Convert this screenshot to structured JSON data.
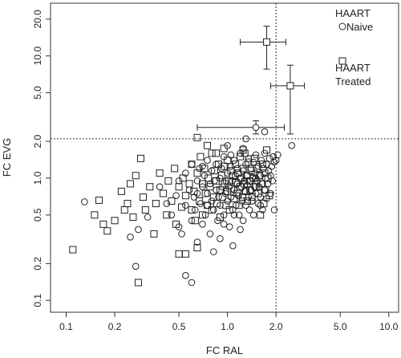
{
  "chart_data": {
    "type": "scatter",
    "title": "",
    "xlabel": "FC RAL",
    "ylabel": "FC EVG",
    "xscale": "log",
    "yscale": "log",
    "xlim": [
      0.08,
      11.5
    ],
    "ylim": [
      0.08,
      27
    ],
    "xticks": [
      0.1,
      0.2,
      0.5,
      1.0,
      2.0,
      5.0,
      10.0
    ],
    "xtick_labels": [
      "0.1",
      "0.2",
      "0.5",
      "1.0",
      "2.0",
      "5.0",
      "10.0"
    ],
    "yticks": [
      0.1,
      0.2,
      0.5,
      1.0,
      2.0,
      5.0,
      10.0,
      20.0
    ],
    "ytick_labels": [
      "0.1",
      "0.2",
      "0.5",
      "1.0",
      "2.0",
      "5.0",
      "10.0",
      "20.0"
    ],
    "grid": false,
    "legend": "top-right",
    "reference_lines": {
      "x": 2.0,
      "y": 2.1
    },
    "series": [
      {
        "name": "HAART Naive",
        "marker": "circle",
        "points": [
          [
            0.13,
            0.64
          ],
          [
            0.28,
            0.38
          ],
          [
            0.27,
            0.19
          ],
          [
            0.25,
            0.33
          ],
          [
            0.32,
            0.48
          ],
          [
            0.38,
            0.85
          ],
          [
            0.42,
            0.62
          ],
          [
            0.45,
            0.5
          ],
          [
            0.48,
            0.72
          ],
          [
            0.5,
            0.95
          ],
          [
            0.5,
            0.4
          ],
          [
            0.52,
            0.35
          ],
          [
            0.55,
            0.6
          ],
          [
            0.55,
            1.1
          ],
          [
            0.58,
            0.8
          ],
          [
            0.6,
            0.45
          ],
          [
            0.6,
            1.3
          ],
          [
            0.62,
            0.7
          ],
          [
            0.63,
            0.55
          ],
          [
            0.65,
            0.95
          ],
          [
            0.65,
            0.3
          ],
          [
            0.67,
            1.2
          ],
          [
            0.68,
            0.62
          ],
          [
            0.7,
            0.85
          ],
          [
            0.7,
            0.42
          ],
          [
            0.72,
            1.05
          ],
          [
            0.73,
            0.5
          ],
          [
            0.75,
            0.75
          ],
          [
            0.75,
            1.4
          ],
          [
            0.78,
            0.9
          ],
          [
            0.78,
            0.35
          ],
          [
            0.8,
            0.65
          ],
          [
            0.8,
            1.15
          ],
          [
            0.82,
            0.55
          ],
          [
            0.83,
            0.95
          ],
          [
            0.85,
            0.8
          ],
          [
            0.85,
            1.3
          ],
          [
            0.87,
            0.45
          ],
          [
            0.88,
            0.7
          ],
          [
            0.9,
            1.0
          ],
          [
            0.9,
            0.6
          ],
          [
            0.92,
            1.2
          ],
          [
            0.93,
            0.85
          ],
          [
            0.95,
            0.5
          ],
          [
            0.95,
            1.5
          ],
          [
            0.97,
            0.75
          ],
          [
            0.98,
            0.95
          ],
          [
            1.0,
            0.65
          ],
          [
            1.0,
            1.1
          ],
          [
            1.02,
            0.85
          ],
          [
            1.03,
            0.4
          ],
          [
            1.05,
            1.25
          ],
          [
            1.05,
            0.7
          ],
          [
            1.07,
            0.95
          ],
          [
            1.08,
            0.55
          ],
          [
            1.1,
            1.4
          ],
          [
            1.1,
            0.8
          ],
          [
            1.12,
            1.05
          ],
          [
            1.13,
            0.6
          ],
          [
            1.15,
            0.9
          ],
          [
            1.15,
            1.2
          ],
          [
            1.17,
            0.72
          ],
          [
            1.18,
            0.5
          ],
          [
            1.2,
            1.0
          ],
          [
            1.2,
            1.6
          ],
          [
            1.22,
            0.85
          ],
          [
            1.23,
            0.65
          ],
          [
            1.25,
            1.15
          ],
          [
            1.25,
            0.45
          ],
          [
            1.27,
            0.95
          ],
          [
            1.28,
            0.78
          ],
          [
            1.3,
            1.3
          ],
          [
            1.3,
            0.6
          ],
          [
            1.32,
            1.05
          ],
          [
            1.33,
            0.88
          ],
          [
            1.35,
            0.7
          ],
          [
            1.35,
            1.45
          ],
          [
            1.37,
            0.55
          ],
          [
            1.38,
            0.95
          ],
          [
            1.4,
            1.2
          ],
          [
            1.4,
            0.8
          ],
          [
            1.42,
            0.65
          ],
          [
            1.43,
            1.0
          ],
          [
            1.45,
            1.35
          ],
          [
            1.45,
            0.5
          ],
          [
            1.47,
            0.85
          ],
          [
            1.48,
            1.1
          ],
          [
            1.5,
            0.75
          ],
          [
            1.5,
            1.55
          ],
          [
            1.52,
            0.95
          ],
          [
            1.55,
            0.62
          ],
          [
            1.55,
            1.25
          ],
          [
            1.57,
            0.85
          ],
          [
            1.6,
            1.05
          ],
          [
            1.6,
            0.7
          ],
          [
            1.62,
            1.4
          ],
          [
            1.65,
            0.9
          ],
          [
            1.65,
            0.55
          ],
          [
            1.67,
            1.2
          ],
          [
            1.7,
            0.8
          ],
          [
            1.7,
            1.6
          ],
          [
            1.72,
            1.0
          ],
          [
            1.75,
            0.68
          ],
          [
            1.75,
            1.3
          ],
          [
            1.78,
            0.9
          ],
          [
            1.8,
            1.15
          ],
          [
            1.82,
            1.45
          ],
          [
            1.85,
            0.75
          ],
          [
            1.85,
            1.05
          ],
          [
            1.88,
            1.25
          ],
          [
            1.9,
            0.95
          ],
          [
            1.92,
            1.5
          ],
          [
            1.95,
            0.55
          ],
          [
            2.0,
            1.4
          ],
          [
            2.05,
            1.55
          ],
          [
            1.95,
            1.35
          ],
          [
            2.5,
            1.85
          ],
          [
            1.7,
            2.4
          ],
          [
            1.3,
            2.1
          ],
          [
            1.08,
            0.28
          ],
          [
            0.82,
            0.25
          ],
          [
            0.55,
            0.16
          ],
          [
            0.6,
            0.14
          ],
          [
            0.9,
            0.32
          ],
          [
            1.2,
            0.38
          ],
          [
            1.6,
            0.6
          ],
          [
            1.5,
            1.0
          ],
          [
            1.25,
            1.75
          ],
          [
            1.0,
            1.85
          ],
          [
            0.95,
            0.42
          ],
          [
            0.75,
            0.6
          ],
          [
            0.7,
            1.25
          ],
          [
            0.65,
            0.75
          ],
          [
            1.05,
            1.55
          ],
          [
            1.1,
            0.5
          ]
        ]
      },
      {
        "name": "HAART Treated",
        "marker": "square",
        "points": [
          [
            0.11,
            0.26
          ],
          [
            0.15,
            0.5
          ],
          [
            0.16,
            0.66
          ],
          [
            0.17,
            0.42
          ],
          [
            0.18,
            0.37
          ],
          [
            0.2,
            0.45
          ],
          [
            0.22,
            0.78
          ],
          [
            0.23,
            0.55
          ],
          [
            0.24,
            0.62
          ],
          [
            0.25,
            0.9
          ],
          [
            0.26,
            0.48
          ],
          [
            0.27,
            1.05
          ],
          [
            0.28,
            0.14
          ],
          [
            0.29,
            1.45
          ],
          [
            0.3,
            0.7
          ],
          [
            0.31,
            0.55
          ],
          [
            0.33,
            0.85
          ],
          [
            0.35,
            0.35
          ],
          [
            0.36,
            0.62
          ],
          [
            0.38,
            1.1
          ],
          [
            0.4,
            0.75
          ],
          [
            0.42,
            0.5
          ],
          [
            0.43,
            0.95
          ],
          [
            0.45,
            0.65
          ],
          [
            0.47,
            1.2
          ],
          [
            0.48,
            0.42
          ],
          [
            0.5,
            0.85
          ],
          [
            0.5,
            0.24
          ],
          [
            0.52,
            0.58
          ],
          [
            0.53,
            1.0
          ],
          [
            0.55,
            0.72
          ],
          [
            0.55,
            0.24
          ],
          [
            0.58,
            0.9
          ],
          [
            0.6,
            0.55
          ],
          [
            0.6,
            1.3
          ],
          [
            0.62,
            0.78
          ],
          [
            0.63,
            0.45
          ],
          [
            0.65,
            1.1
          ],
          [
            0.65,
            0.27
          ],
          [
            0.67,
            0.65
          ],
          [
            0.68,
            1.5
          ],
          [
            0.7,
            0.9
          ],
          [
            0.7,
            0.5
          ],
          [
            0.72,
            1.2
          ],
          [
            0.73,
            0.75
          ],
          [
            0.75,
            0.6
          ],
          [
            0.76,
            1.0
          ],
          [
            0.78,
            0.85
          ],
          [
            0.8,
            1.6
          ],
          [
            0.8,
            0.55
          ],
          [
            0.82,
            0.7
          ],
          [
            0.83,
            1.15
          ],
          [
            0.85,
            0.95
          ],
          [
            0.86,
            0.62
          ],
          [
            0.88,
            1.3
          ],
          [
            0.9,
            0.8
          ],
          [
            0.9,
            0.48
          ],
          [
            0.92,
            1.05
          ],
          [
            0.93,
            0.7
          ],
          [
            0.95,
            1.25
          ],
          [
            0.96,
            0.9
          ],
          [
            0.98,
            0.6
          ],
          [
            1.0,
            1.4
          ],
          [
            1.0,
            0.78
          ],
          [
            1.02,
            0.95
          ],
          [
            1.03,
            0.55
          ],
          [
            1.05,
            1.15
          ],
          [
            1.06,
            0.82
          ],
          [
            1.08,
            1.05
          ],
          [
            1.1,
            0.68
          ],
          [
            1.12,
            1.3
          ],
          [
            1.13,
            0.92
          ],
          [
            1.15,
            0.75
          ],
          [
            1.16,
            1.1
          ],
          [
            1.18,
            0.6
          ],
          [
            1.2,
            1.5
          ],
          [
            1.2,
            0.85
          ],
          [
            1.22,
            1.0
          ],
          [
            1.24,
            0.7
          ],
          [
            1.25,
            1.2
          ],
          [
            1.27,
            0.9
          ],
          [
            1.28,
            1.6
          ],
          [
            1.3,
            0.78
          ],
          [
            1.32,
            1.05
          ],
          [
            1.33,
            0.65
          ],
          [
            1.35,
            1.35
          ],
          [
            1.37,
            0.95
          ],
          [
            1.38,
            0.8
          ],
          [
            1.4,
            1.15
          ],
          [
            1.42,
            0.7
          ],
          [
            1.45,
            1.0
          ],
          [
            1.47,
            1.45
          ],
          [
            1.5,
            0.85
          ],
          [
            1.52,
            1.2
          ],
          [
            1.55,
            0.75
          ],
          [
            1.58,
            1.05
          ],
          [
            1.6,
            0.5
          ],
          [
            1.62,
            0.9
          ],
          [
            1.65,
            1.3
          ],
          [
            1.68,
            0.62
          ],
          [
            1.7,
            1.1
          ],
          [
            1.72,
            0.8
          ],
          [
            1.75,
            1.7
          ],
          [
            1.78,
            1.0
          ],
          [
            1.82,
            0.72
          ],
          [
            0.65,
            2.15
          ],
          [
            0.75,
            1.85
          ],
          [
            0.85,
            1.6
          ],
          [
            0.95,
            1.75
          ],
          [
            1.25,
            1.7
          ]
        ]
      }
    ],
    "errorbar_points": [
      {
        "series": "HAART Treated",
        "x": 1.75,
        "y": 13.0,
        "x_low": 1.2,
        "x_high": 2.3,
        "y_low": 7.8,
        "y_high": 17.5
      },
      {
        "series": "HAART Treated",
        "x": 2.45,
        "y": 5.7,
        "x_low": 1.85,
        "x_high": 3.0,
        "y_low": 2.3,
        "y_high": 8.4
      },
      {
        "series": "HAART Naive",
        "x": 1.5,
        "y": 2.6,
        "x_low": 0.65,
        "x_high": 2.25,
        "y_low": 2.3,
        "y_high": 2.95
      }
    ]
  },
  "legend_items": [
    {
      "line1": "HAART",
      "line2": "Naive",
      "marker": "circle"
    },
    {
      "line1": "HAART",
      "line2": "Treated",
      "marker": "square"
    }
  ]
}
